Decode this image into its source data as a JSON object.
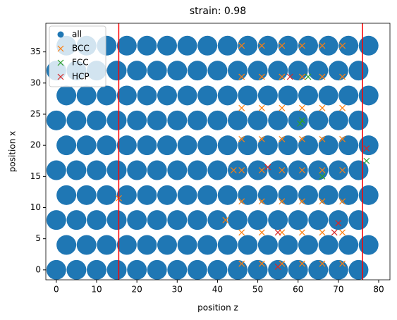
{
  "chart_data": {
    "type": "scatter",
    "title": "strain: 0.98",
    "x_label": "position z",
    "y_label": "position x",
    "xlim": [
      -2.6,
      82.8
    ],
    "ylim": [
      -1.6,
      39.6
    ],
    "xticks": [
      0,
      10,
      20,
      30,
      40,
      50,
      60,
      70,
      80
    ],
    "yticks": [
      0,
      5,
      10,
      15,
      20,
      25,
      30,
      35
    ],
    "legend": "upper left",
    "vlines": [
      15.5,
      76
    ],
    "vline_color": "#ff0000",
    "series": [
      {
        "name": "all",
        "color": "#1f77b4",
        "marker": "o",
        "x": [
          0,
          5,
          10,
          15,
          20,
          25,
          30,
          35,
          40,
          45,
          50,
          55,
          60,
          65,
          70,
          75,
          2.5,
          7.5,
          12.5,
          17.5,
          22.5,
          27.5,
          32.5,
          37.5,
          42.5,
          47.5,
          52.5,
          57.5,
          62.5,
          67.5,
          72.5,
          77.5,
          0,
          5,
          10,
          15,
          20,
          25,
          30,
          35,
          40,
          45,
          50,
          55,
          60,
          65,
          70,
          75,
          2.5,
          7.5,
          12.5,
          17.5,
          22.5,
          27.5,
          32.5,
          37.5,
          42.5,
          47.5,
          52.5,
          57.5,
          62.5,
          67.5,
          72.5,
          77.5,
          0,
          5,
          10,
          15,
          20,
          25,
          30,
          35,
          40,
          45,
          50,
          55,
          60,
          65,
          70,
          75,
          2.5,
          7.5,
          12.5,
          17.5,
          22.5,
          27.5,
          32.5,
          37.5,
          42.5,
          47.5,
          52.5,
          57.5,
          62.5,
          67.5,
          72.5,
          77.5,
          0,
          5,
          10,
          15,
          20,
          25,
          30,
          35,
          40,
          45,
          50,
          55,
          60,
          65,
          70,
          75,
          2.5,
          7.5,
          12.5,
          17.5,
          22.5,
          27.5,
          32.5,
          37.5,
          42.5,
          47.5,
          52.5,
          57.5,
          62.5,
          67.5,
          72.5,
          77.5,
          0,
          5,
          10,
          15,
          20,
          25,
          30,
          35,
          40,
          45,
          50,
          55,
          60,
          65,
          70,
          75,
          2.5,
          7.5,
          12.5,
          17.5,
          22.5,
          27.5,
          32.5,
          37.5,
          42.5,
          47.5,
          52.5,
          57.5,
          62.5,
          67.5,
          72.5,
          77.5
        ],
        "y": [
          0,
          0,
          0,
          0,
          0,
          0,
          0,
          0,
          0,
          0,
          0,
          0,
          0,
          0,
          0,
          0,
          4,
          4,
          4,
          4,
          4,
          4,
          4,
          4,
          4,
          4,
          4,
          4,
          4,
          4,
          4,
          4,
          8,
          8,
          8,
          8,
          8,
          8,
          8,
          8,
          8,
          8,
          8,
          8,
          8,
          8,
          8,
          8,
          12,
          12,
          12,
          12,
          12,
          12,
          12,
          12,
          12,
          12,
          12,
          12,
          12,
          12,
          12,
          12,
          16,
          16,
          16,
          16,
          16,
          16,
          16,
          16,
          16,
          16,
          16,
          16,
          16,
          16,
          16,
          16,
          20,
          20,
          20,
          20,
          20,
          20,
          20,
          20,
          20,
          20,
          20,
          20,
          20,
          20,
          20,
          20,
          24,
          24,
          24,
          24,
          24,
          24,
          24,
          24,
          24,
          24,
          24,
          24,
          24,
          24,
          24,
          24,
          28,
          28,
          28,
          28,
          28,
          28,
          28,
          28,
          28,
          28,
          28,
          28,
          28,
          28,
          28,
          28,
          32,
          32,
          32,
          32,
          32,
          32,
          32,
          32,
          32,
          32,
          32,
          32,
          32,
          32,
          32,
          32,
          36,
          36,
          36,
          36,
          36,
          36,
          36,
          36,
          36,
          36,
          36,
          36,
          36,
          36,
          36,
          36
        ]
      },
      {
        "name": "BCC",
        "color": "#ff7f0e",
        "marker": "x",
        "x": [
          46,
          51,
          56,
          61,
          66,
          71,
          46,
          51,
          56,
          61,
          66,
          71,
          46,
          51,
          56,
          61,
          66,
          71,
          46,
          51,
          56,
          61,
          66,
          71,
          46,
          51,
          56,
          61,
          66,
          71,
          46,
          51,
          56,
          61,
          66,
          71,
          46,
          51,
          56,
          61,
          66,
          71,
          46,
          51,
          56,
          61,
          66,
          71,
          15.5,
          42,
          44
        ],
        "y": [
          1,
          1,
          1,
          1,
          1,
          1,
          6,
          6,
          6,
          6,
          6,
          6,
          11,
          11,
          11,
          11,
          11,
          11,
          16,
          16,
          16,
          16,
          16,
          16,
          21,
          21,
          21,
          21,
          21,
          21,
          26,
          26,
          26,
          26,
          26,
          26,
          31,
          31,
          31,
          31,
          31,
          31,
          36,
          36,
          36,
          36,
          36,
          36,
          11.5,
          8,
          16
        ]
      },
      {
        "name": "FCC",
        "color": "#2ca02c",
        "marker": "x",
        "x": [
          60.5,
          61,
          62.5,
          66,
          77
        ],
        "y": [
          23.5,
          24,
          31,
          15,
          17.5
        ]
      },
      {
        "name": "HCP",
        "color": "#d62728",
        "marker": "x",
        "x": [
          55,
          52.5,
          58,
          69,
          77,
          70,
          55
        ],
        "y": [
          0.5,
          16.5,
          31,
          6,
          19.5,
          7.5,
          6
        ]
      }
    ]
  }
}
